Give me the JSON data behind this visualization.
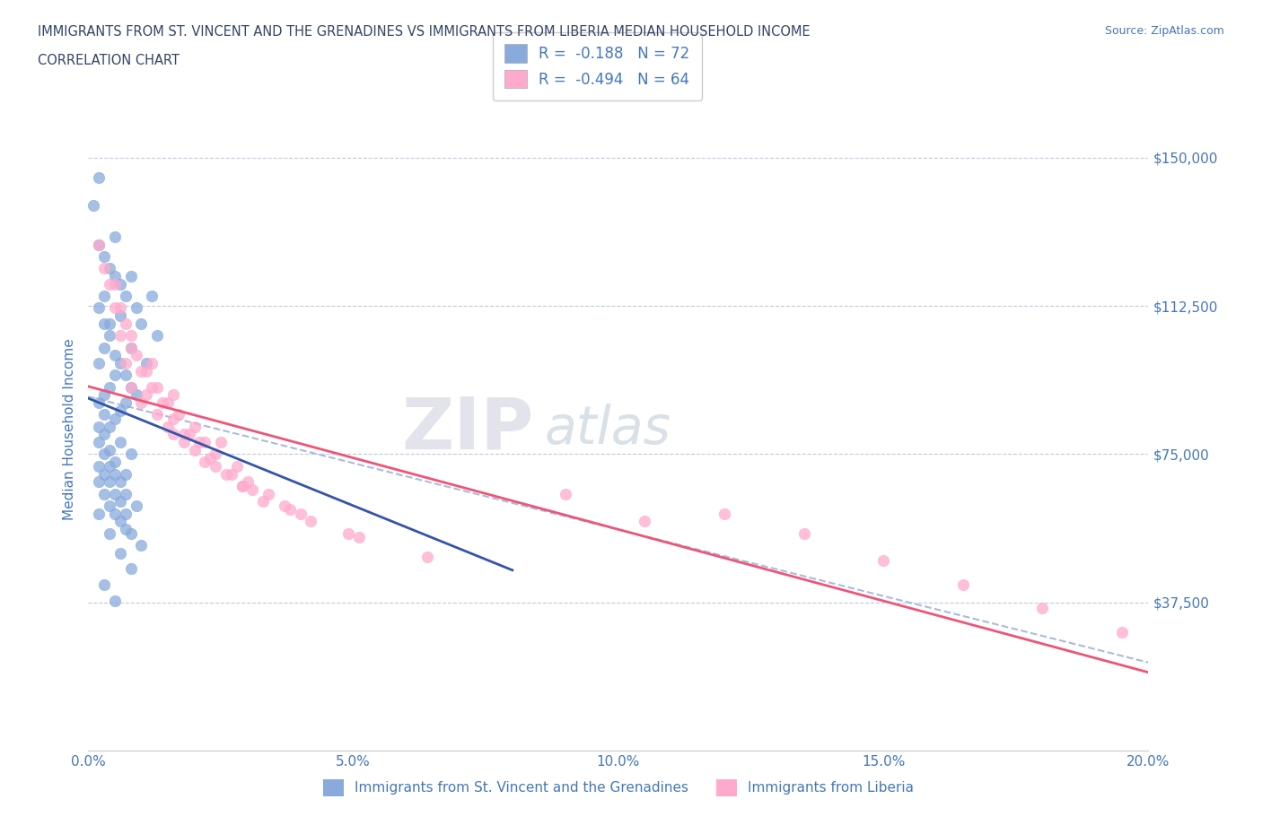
{
  "title_line1": "IMMIGRANTS FROM ST. VINCENT AND THE GRENADINES VS IMMIGRANTS FROM LIBERIA MEDIAN HOUSEHOLD INCOME",
  "title_line2": "CORRELATION CHART",
  "source_text": "Source: ZipAtlas.com",
  "ylabel": "Median Household Income",
  "xlim": [
    0.0,
    0.2
  ],
  "ylim": [
    0,
    162500
  ],
  "yticks": [
    0,
    37500,
    75000,
    112500,
    150000
  ],
  "ytick_labels": [
    "",
    "$37,500",
    "$75,000",
    "$112,500",
    "$150,000"
  ],
  "xticks": [
    0.0,
    0.05,
    0.1,
    0.15,
    0.2
  ],
  "xtick_labels": [
    "0.0%",
    "5.0%",
    "10.0%",
    "15.0%",
    "20.0%"
  ],
  "color_blue": "#88AADD",
  "color_pink": "#FFAACC",
  "color_blue_line": "#3355AA",
  "color_pink_line": "#EE5577",
  "color_dashed": "#AABBDD",
  "legend_r1": "R =  -0.188",
  "legend_n1": "N = 72",
  "legend_r2": "R =  -0.494",
  "legend_n2": "N = 64",
  "legend_label1": "Immigrants from St. Vincent and the Grenadines",
  "legend_label2": "Immigrants from Liberia",
  "watermark_zip": "ZIP",
  "watermark_atlas": "atlas",
  "title_color": "#334466",
  "axis_color": "#4477BB",
  "blue_scatter_x": [
    0.002,
    0.005,
    0.008,
    0.012,
    0.003,
    0.006,
    0.009,
    0.001,
    0.004,
    0.007,
    0.01,
    0.013,
    0.002,
    0.005,
    0.003,
    0.006,
    0.004,
    0.008,
    0.011,
    0.002,
    0.003,
    0.005,
    0.007,
    0.009,
    0.004,
    0.006,
    0.008,
    0.003,
    0.005,
    0.007,
    0.002,
    0.004,
    0.006,
    0.003,
    0.005,
    0.002,
    0.004,
    0.003,
    0.006,
    0.008,
    0.002,
    0.004,
    0.003,
    0.005,
    0.007,
    0.002,
    0.004,
    0.006,
    0.003,
    0.005,
    0.007,
    0.009,
    0.002,
    0.004,
    0.006,
    0.003,
    0.005,
    0.007,
    0.002,
    0.004,
    0.006,
    0.008,
    0.003,
    0.005,
    0.007,
    0.01,
    0.002,
    0.004,
    0.006,
    0.008,
    0.003,
    0.005
  ],
  "blue_scatter_y": [
    145000,
    130000,
    120000,
    115000,
    125000,
    118000,
    112000,
    138000,
    122000,
    115000,
    108000,
    105000,
    128000,
    120000,
    115000,
    110000,
    108000,
    102000,
    98000,
    112000,
    108000,
    100000,
    95000,
    90000,
    105000,
    98000,
    92000,
    102000,
    95000,
    88000,
    98000,
    92000,
    86000,
    90000,
    84000,
    88000,
    82000,
    85000,
    78000,
    75000,
    82000,
    76000,
    80000,
    73000,
    70000,
    78000,
    72000,
    68000,
    75000,
    70000,
    65000,
    62000,
    72000,
    68000,
    63000,
    70000,
    65000,
    60000,
    68000,
    62000,
    58000,
    55000,
    65000,
    60000,
    56000,
    52000,
    60000,
    55000,
    50000,
    46000,
    42000,
    38000
  ],
  "pink_scatter_x": [
    0.002,
    0.005,
    0.008,
    0.012,
    0.016,
    0.02,
    0.025,
    0.003,
    0.006,
    0.009,
    0.013,
    0.017,
    0.022,
    0.028,
    0.004,
    0.007,
    0.011,
    0.015,
    0.019,
    0.024,
    0.03,
    0.005,
    0.008,
    0.012,
    0.016,
    0.021,
    0.027,
    0.034,
    0.006,
    0.01,
    0.014,
    0.018,
    0.023,
    0.029,
    0.037,
    0.007,
    0.011,
    0.015,
    0.02,
    0.026,
    0.033,
    0.042,
    0.008,
    0.013,
    0.018,
    0.024,
    0.031,
    0.04,
    0.051,
    0.01,
    0.016,
    0.022,
    0.029,
    0.038,
    0.049,
    0.064,
    0.12,
    0.135,
    0.15,
    0.165,
    0.18,
    0.195,
    0.09,
    0.105
  ],
  "pink_scatter_y": [
    128000,
    118000,
    105000,
    98000,
    90000,
    82000,
    78000,
    122000,
    112000,
    100000,
    92000,
    85000,
    78000,
    72000,
    118000,
    108000,
    96000,
    88000,
    80000,
    75000,
    68000,
    112000,
    102000,
    92000,
    84000,
    78000,
    70000,
    65000,
    105000,
    96000,
    88000,
    80000,
    74000,
    67000,
    62000,
    98000,
    90000,
    82000,
    76000,
    70000,
    63000,
    58000,
    92000,
    85000,
    78000,
    72000,
    66000,
    60000,
    54000,
    88000,
    80000,
    73000,
    67000,
    61000,
    55000,
    49000,
    60000,
    55000,
    48000,
    42000,
    36000,
    30000,
    65000,
    58000
  ]
}
